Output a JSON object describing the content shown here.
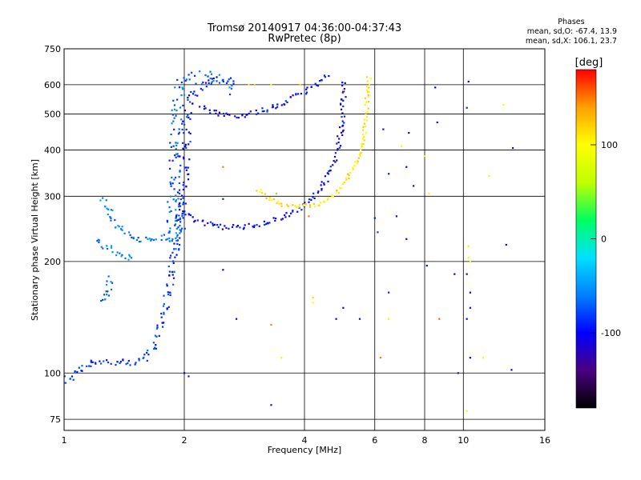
{
  "header": {
    "title_line1": "Tromsø 20140917 04:36:00-04:37:43",
    "title_line2": "RwPretec (8p)"
  },
  "stats": {
    "heading": "Phases",
    "line1": "mean, sd,O: -67.4, 13.9",
    "line2": "mean, sd,X: 106.1, 23.7"
  },
  "colorbar": {
    "label": "[deg]",
    "ticks": [
      "100",
      "0",
      "-100"
    ],
    "tick_values": [
      100,
      0,
      -100
    ],
    "range": [
      -180,
      180
    ],
    "colors": [
      "#000000",
      "#4a0080",
      "#0000ff",
      "#0080ff",
      "#00e0ff",
      "#00ff60",
      "#c0ff00",
      "#ffff00",
      "#ffa000",
      "#ff0000"
    ]
  },
  "chart_data": {
    "type": "scatter",
    "xlabel": "Frequency [MHz]",
    "ylabel": "Stationary phase Virtual Height [km]",
    "xscale": "log",
    "yscale": "log",
    "xlim": [
      1,
      16
    ],
    "ylim": [
      70,
      750
    ],
    "xticks": [
      1,
      2,
      4,
      6,
      8,
      10,
      16
    ],
    "xtick_labels": [
      "1",
      "2",
      "4",
      "6",
      "8",
      "10",
      "16"
    ],
    "yticks": [
      75,
      100,
      200,
      300,
      400,
      500,
      600,
      750
    ],
    "ytick_labels": [
      "75",
      "100",
      "200",
      "300",
      "400",
      "500",
      "600",
      "750"
    ],
    "grid": true,
    "color_meaning": "phase [deg]",
    "traces": [
      {
        "points": [
          [
            1.0,
            95
          ],
          [
            1.05,
            98
          ],
          [
            1.1,
            104
          ],
          [
            1.2,
            108
          ],
          [
            1.3,
            107
          ],
          [
            1.4,
            106
          ],
          [
            1.5,
            106
          ],
          [
            1.6,
            110
          ],
          [
            1.7,
            120
          ],
          [
            1.75,
            140
          ],
          [
            1.8,
            160
          ],
          [
            1.85,
            180
          ],
          [
            1.9,
            220
          ],
          [
            1.95,
            270
          ],
          [
            2.0,
            300
          ]
        ],
        "phase": -85,
        "spread": 0.025
      },
      {
        "points": [
          [
            1.25,
            155
          ],
          [
            1.28,
            165
          ],
          [
            1.3,
            175
          ],
          [
            1.28,
            185
          ]
        ],
        "phase": -65,
        "spread": 0.02
      },
      {
        "points": [
          [
            1.25,
            295
          ],
          [
            1.3,
            270
          ],
          [
            1.35,
            250
          ],
          [
            1.45,
            235
          ],
          [
            1.55,
            230
          ],
          [
            1.65,
            228
          ],
          [
            1.75,
            232
          ],
          [
            1.9,
            238
          ],
          [
            2.0,
            240
          ]
        ],
        "phase": -60,
        "spread": 0.02
      },
      {
        "points": [
          [
            1.2,
            230
          ],
          [
            1.3,
            215
          ],
          [
            1.4,
            205
          ],
          [
            1.5,
            205
          ]
        ],
        "phase": -65,
        "spread": 0.02
      },
      {
        "points": [
          [
            1.85,
            220
          ],
          [
            1.88,
            300
          ],
          [
            1.9,
            400
          ],
          [
            1.92,
            500
          ],
          [
            1.95,
            580
          ],
          [
            2.0,
            620
          ],
          [
            2.1,
            630
          ],
          [
            2.3,
            630
          ],
          [
            2.5,
            610
          ],
          [
            2.7,
            580
          ]
        ],
        "phase": -70,
        "spread": 0.035
      },
      {
        "points": [
          [
            1.95,
            250
          ],
          [
            2.0,
            350
          ],
          [
            2.02,
            450
          ],
          [
            2.05,
            520
          ],
          [
            2.1,
            560
          ],
          [
            2.2,
            600
          ],
          [
            2.4,
            620
          ],
          [
            2.6,
            640
          ]
        ],
        "phase": -90,
        "spread": 0.03
      },
      {
        "points": [
          [
            2.2,
            520
          ],
          [
            2.4,
            505
          ],
          [
            2.6,
            495
          ],
          [
            2.8,
            497
          ],
          [
            3.1,
            508
          ],
          [
            3.5,
            530
          ],
          [
            3.9,
            565
          ],
          [
            4.3,
            605
          ],
          [
            4.6,
            640
          ]
        ],
        "phase": -100,
        "spread": 0.015
      },
      {
        "points": [
          [
            2.0,
            270
          ],
          [
            2.2,
            255
          ],
          [
            2.5,
            248
          ],
          [
            2.8,
            248
          ],
          [
            3.1,
            252
          ],
          [
            3.5,
            262
          ],
          [
            3.9,
            280
          ],
          [
            4.3,
            305
          ],
          [
            4.6,
            340
          ],
          [
            4.8,
            390
          ],
          [
            4.95,
            460
          ],
          [
            5.0,
            540
          ],
          [
            5.05,
            620
          ]
        ],
        "phase": -100,
        "spread": 0.015
      },
      {
        "points": [
          [
            3.05,
            312
          ],
          [
            3.2,
            298
          ],
          [
            3.5,
            285
          ],
          [
            3.9,
            282
          ],
          [
            4.3,
            285
          ],
          [
            4.7,
            300
          ],
          [
            5.1,
            330
          ],
          [
            5.4,
            370
          ],
          [
            5.6,
            420
          ],
          [
            5.7,
            480
          ],
          [
            5.75,
            560
          ],
          [
            5.8,
            640
          ]
        ],
        "phase": 110,
        "spread": 0.012
      }
    ],
    "scatter": [
      [
        10.3,
        612,
        -110
      ],
      [
        8.5,
        590,
        -100
      ],
      [
        10.2,
        520,
        -90
      ],
      [
        12.6,
        530,
        95
      ],
      [
        8.6,
        475,
        -95
      ],
      [
        6.3,
        455,
        -120
      ],
      [
        7.3,
        445,
        -110
      ],
      [
        7.0,
        410,
        80
      ],
      [
        13.3,
        405,
        -100
      ],
      [
        8.0,
        385,
        90
      ],
      [
        7.2,
        360,
        -100
      ],
      [
        2.5,
        360,
        150
      ],
      [
        6.5,
        345,
        -95
      ],
      [
        11.6,
        340,
        80
      ],
      [
        5.0,
        580,
        110
      ],
      [
        7.5,
        320,
        -110
      ],
      [
        8.2,
        305,
        100
      ],
      [
        3.4,
        305,
        40
      ],
      [
        2.5,
        295,
        -90
      ],
      [
        4.1,
        265,
        150
      ],
      [
        6.8,
        265,
        -120
      ],
      [
        6.0,
        262,
        -95
      ],
      [
        6.1,
        240,
        -80
      ],
      [
        7.2,
        230,
        -110
      ],
      [
        10.3,
        220,
        80
      ],
      [
        10.3,
        205,
        90
      ],
      [
        10.4,
        200,
        85
      ],
      [
        12.8,
        222,
        -110
      ],
      [
        8.1,
        195,
        -100
      ],
      [
        9.5,
        185,
        -110
      ],
      [
        10.2,
        185,
        -100
      ],
      [
        2.5,
        190,
        -110
      ],
      [
        4.2,
        160,
        115
      ],
      [
        4.2,
        155,
        100
      ],
      [
        6.5,
        165,
        -90
      ],
      [
        10.4,
        165,
        -100
      ],
      [
        10.4,
        150,
        -95
      ],
      [
        5.0,
        150,
        -100
      ],
      [
        2.7,
        140,
        -110
      ],
      [
        3.3,
        135,
        150
      ],
      [
        4.8,
        140,
        -100
      ],
      [
        5.5,
        140,
        -95
      ],
      [
        6.5,
        140,
        80
      ],
      [
        8.7,
        140,
        155
      ],
      [
        10.2,
        140,
        -100
      ],
      [
        3.5,
        110,
        85
      ],
      [
        6.2,
        110,
        150
      ],
      [
        10.4,
        110,
        -110
      ],
      [
        11.2,
        110,
        95
      ],
      [
        9.7,
        100,
        -130
      ],
      [
        13.2,
        102,
        -100
      ],
      [
        3.3,
        82,
        -95
      ],
      [
        10.2,
        79,
        85
      ],
      [
        2.0,
        100,
        -105
      ],
      [
        2.05,
        98,
        -95
      ],
      [
        4.4,
        610,
        90
      ],
      [
        3.9,
        600,
        110
      ],
      [
        3.3,
        600,
        100
      ],
      [
        3.0,
        600,
        120
      ],
      [
        2.9,
        600,
        90
      ]
    ]
  }
}
